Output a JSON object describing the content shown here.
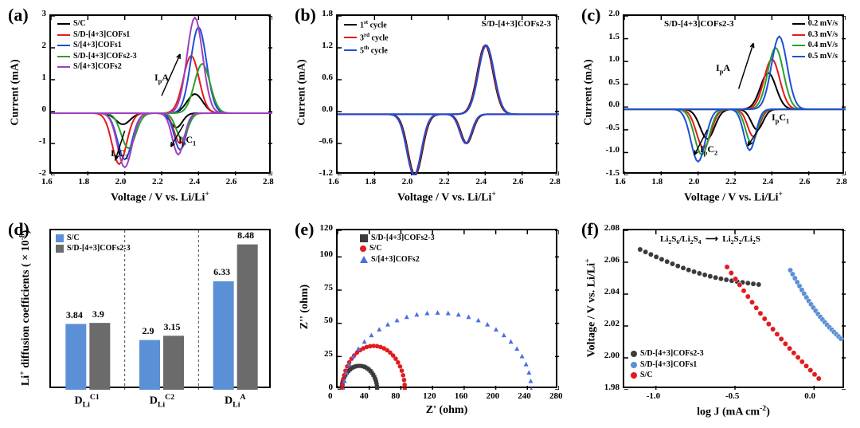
{
  "panels": {
    "a": {
      "label": "(a)",
      "xlabel": "Voltage / V vs. Li/Li⁺",
      "ylabel": "Current (mA)",
      "xlim": [
        1.6,
        2.8
      ],
      "xticks": [
        1.6,
        1.8,
        2.0,
        2.2,
        2.4,
        2.6,
        2.8
      ],
      "ylim": [
        -2,
        3
      ],
      "yticks": [
        -2,
        -1,
        0,
        1,
        2,
        3
      ],
      "legend": [
        {
          "label": "S/C",
          "color": "#000000"
        },
        {
          "label": "S/D-[4+3]COFs1",
          "color": "#e41a1c"
        },
        {
          "label": "S/[4+3]COFs1",
          "color": "#1f4fd6"
        },
        {
          "label": "S/D-[4+3]COFs2-3",
          "color": "#2ca02c"
        },
        {
          "label": "S/[4+3]COFs2",
          "color": "#a040c0"
        }
      ],
      "ann": [
        "IₚA",
        "IₚC₁",
        "IₚC₂"
      ],
      "curves": {
        "SC": {
          "color": "#000000",
          "pA": 0.6,
          "pC1": -0.45,
          "pC2": -0.35,
          "xA": 2.38,
          "xC1": 2.28,
          "xC2": 1.99
        },
        "SD1": {
          "color": "#e41a1c",
          "pA": 1.8,
          "pC1": -0.95,
          "pC2": -1.6,
          "xA": 2.36,
          "xC1": 2.3,
          "xC2": 1.97
        },
        "S1": {
          "color": "#1f4fd6",
          "pA": 2.7,
          "pC1": -1.15,
          "pC2": -1.45,
          "xA": 2.4,
          "xC1": 2.3,
          "xC2": 2.0
        },
        "SD23": {
          "color": "#2ca02c",
          "pA": 1.55,
          "pC1": -0.8,
          "pC2": -1.1,
          "xA": 2.42,
          "xC1": 2.31,
          "xC2": 2.02
        },
        "S2": {
          "color": "#a040c0",
          "pA": 3.0,
          "pC1": -1.3,
          "pC2": -1.7,
          "xA": 2.38,
          "xC1": 2.29,
          "xC2": 2.0
        }
      }
    },
    "b": {
      "label": "(b)",
      "xlabel": "Voltage / V vs. Li/Li⁺",
      "ylabel": "Current (mA)",
      "title": "S/D-[4+3]COFs2-3",
      "xlim": [
        1.6,
        2.8
      ],
      "xticks": [
        1.6,
        1.8,
        2.0,
        2.2,
        2.4,
        2.6,
        2.8
      ],
      "ylim": [
        -1.2,
        1.8
      ],
      "yticks": [
        -1.2,
        -0.6,
        0.0,
        0.6,
        1.2,
        1.8
      ],
      "legend": [
        {
          "label": "1ˢᵗ cycle",
          "color": "#000000"
        },
        {
          "label": "3ʳᵈ cycle",
          "color": "#e41a1c"
        },
        {
          "label": "5ᵗʰ cycle",
          "color": "#1f4fd6"
        }
      ],
      "curve": {
        "pA": 1.3,
        "pC1": -0.55,
        "pC2": -1.15,
        "xA": 2.4,
        "xC1": 2.3,
        "xC2": 2.02
      }
    },
    "c": {
      "label": "(c)",
      "xlabel": "Voltage / V vs. Li/Li⁺",
      "ylabel": "Current (mA)",
      "title": "S/D-[4+3]COFs2-3",
      "xlim": [
        1.6,
        2.8
      ],
      "xticks": [
        1.6,
        1.8,
        2.0,
        2.2,
        2.4,
        2.6,
        2.8
      ],
      "ylim": [
        -1.5,
        2.0
      ],
      "yticks": [
        -1.5,
        -1.0,
        -0.5,
        0.0,
        0.5,
        1.0,
        1.5,
        2.0
      ],
      "legend": [
        {
          "label": "0.2 mV/s",
          "color": "#000000"
        },
        {
          "label": "0.3 mV/s",
          "color": "#e41a1c"
        },
        {
          "label": "0.4 mV/s",
          "color": "#2ca02c"
        },
        {
          "label": "0.5 mV/s",
          "color": "#1f4fd6"
        }
      ],
      "ann": [
        "IₚA",
        "IₚC₁",
        "IₚC₂"
      ],
      "rates": [
        {
          "color": "#000000",
          "pA": 0.8,
          "pC1": -0.45,
          "pC2": -0.65,
          "xA": 2.38,
          "xC1": 2.32,
          "xC2": 2.05
        },
        {
          "color": "#e41a1c",
          "pA": 1.1,
          "pC1": -0.6,
          "pC2": -0.85,
          "xA": 2.4,
          "xC1": 2.3,
          "xC2": 2.03
        },
        {
          "color": "#2ca02c",
          "pA": 1.35,
          "pC1": -0.75,
          "pC2": -1.0,
          "xA": 2.42,
          "xC1": 2.29,
          "xC2": 2.02
        },
        {
          "color": "#1f4fd6",
          "pA": 1.6,
          "pC1": -0.9,
          "pC2": -1.15,
          "xA": 2.44,
          "xC1": 2.28,
          "xC2": 2.0
        }
      ]
    },
    "d": {
      "label": "(d)",
      "xlabel_cats": [
        "D_Li^C1",
        "D_Li^C2",
        "D_Li^A"
      ],
      "ylabel": "Li⁺ diffusion coefficients ( × 10⁻⁸)",
      "ylim": [
        0,
        9.3
      ],
      "legend": [
        {
          "label": "S/C",
          "color": "#5b8fd6"
        },
        {
          "label": "S/D-[4+3]COFs2-3",
          "color": "#6b6b6b"
        }
      ],
      "groups": [
        {
          "cat": "D_Li^C1",
          "vals": [
            3.84,
            3.9
          ]
        },
        {
          "cat": "D_Li^C2",
          "vals": [
            2.9,
            3.15
          ]
        },
        {
          "cat": "D_Li^A",
          "vals": [
            6.33,
            8.48
          ]
        }
      ],
      "colors": [
        "#5b8fd6",
        "#6b6b6b"
      ]
    },
    "e": {
      "label": "(e)",
      "xlabel": "Z' (ohm)",
      "ylabel": "Z'' (ohm)",
      "xlim": [
        0,
        280
      ],
      "xticks": [
        0,
        40,
        80,
        120,
        160,
        200,
        240,
        280
      ],
      "ylim": [
        0,
        120
      ],
      "yticks": [
        0,
        25,
        50,
        75,
        100,
        120
      ],
      "legend": [
        {
          "label": "S/D-[4+3]COFs2-3",
          "color": "#3b3b3b",
          "marker": "sq"
        },
        {
          "label": "S/C",
          "color": "#e41a1c",
          "marker": "dot"
        },
        {
          "label": "S/[4+3]COFs2",
          "color": "#4a6fe3",
          "marker": "tri"
        }
      ],
      "arcs": [
        {
          "color": "#3b3b3b",
          "rstart": 5,
          "rmax": 18,
          "rend": 50,
          "marker": "sq"
        },
        {
          "color": "#e41a1c",
          "rstart": 6,
          "rmax": 33,
          "rend": 85,
          "marker": "dot"
        },
        {
          "color": "#4a6fe3",
          "rstart": 8,
          "rmax": 58,
          "rend": 245,
          "marker": "tri"
        }
      ]
    },
    "f": {
      "label": "(f)",
      "xlabel": "log J (mA cm⁻²)",
      "ylabel": "Voltage / V vs. Li/Li⁺",
      "xlim": [
        -1.2,
        0.2
      ],
      "xticks": [
        -1.0,
        -0.5,
        0.0
      ],
      "ylim": [
        1.98,
        2.08
      ],
      "yticks": [
        1.98,
        2.0,
        2.02,
        2.04,
        2.06,
        2.08
      ],
      "title": "Li₂S₆/Li₂S₄ → Li₂S₂/Li₂S",
      "legend": [
        {
          "label": "S/D-[4+3]COFs2-3",
          "color": "#3b3b3b"
        },
        {
          "label": "S/D-[4+3]COFs1",
          "color": "#5b8fd6"
        },
        {
          "label": "S/C",
          "color": "#e41a1c"
        }
      ],
      "series": [
        {
          "color": "#3b3b3b",
          "xstart": -1.1,
          "ystart": 2.068,
          "xend": -0.35,
          "yend": 2.046
        },
        {
          "color": "#e41a1c",
          "xstart": -0.55,
          "ystart": 2.057,
          "xend": 0.03,
          "yend": 1.987
        },
        {
          "color": "#5b8fd6",
          "xstart": -0.15,
          "ystart": 2.055,
          "xend": 0.17,
          "yend": 2.012
        }
      ]
    }
  },
  "style": {
    "axis_fontsize": 14,
    "tick_fontsize": 11,
    "legend_fontsize": 10,
    "border_color": "#000000",
    "bg": "#ffffff",
    "line_width": 2,
    "marker_size": 5
  }
}
